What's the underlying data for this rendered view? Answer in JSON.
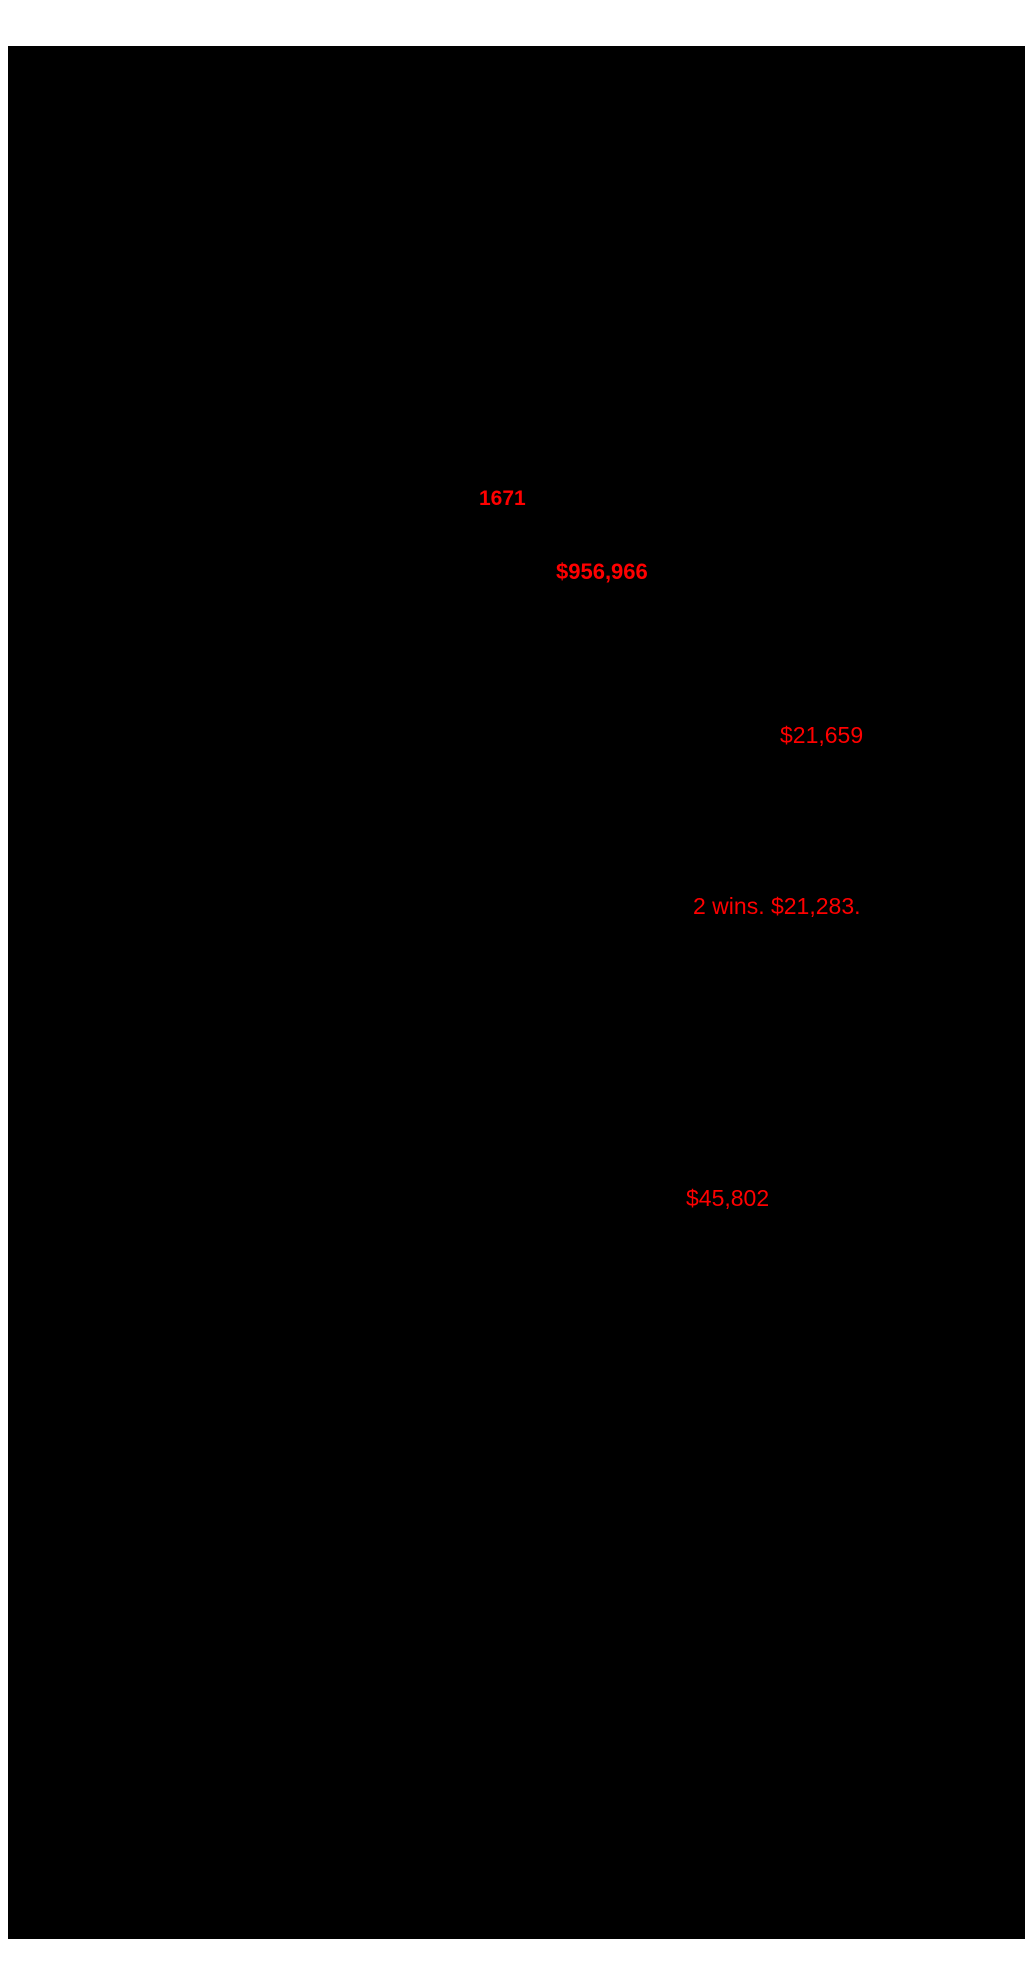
{
  "page": {
    "background_color": "#ffffff"
  },
  "content_area": {
    "background_color": "#000000"
  },
  "highlight_color": "#ff0000",
  "highlights": [
    {
      "text": "1671",
      "bold": true
    },
    {
      "text": "$956,966",
      "bold": true
    },
    {
      "text": "$21,659",
      "bold": false
    },
    {
      "text": "2 wins. $21,283.",
      "bold": false
    },
    {
      "text": "$45,802",
      "bold": false
    }
  ]
}
